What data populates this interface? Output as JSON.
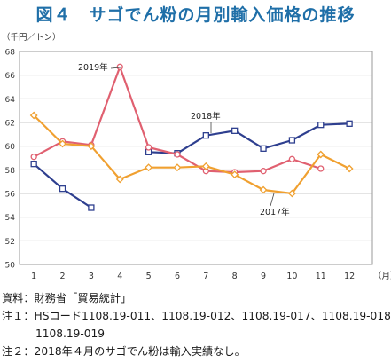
{
  "title": "図４　サゴでん粉の月別輸入価格の推移",
  "notes": {
    "source": "資料：財務省「貿易統計」",
    "note1_line1": "注１：HSコード1108.19-011、1108.19-012、1108.19-017、1108.19-018、",
    "note1_line2": "1108.19-019",
    "note2": "注２：2018年４月のサゴでん粉は輸入実績なし。"
  },
  "chart_data": {
    "type": "line",
    "ylabel": "（千円／トン）",
    "xlabel": "（月）",
    "ylim": [
      50,
      68
    ],
    "yticks": [
      50,
      52,
      54,
      56,
      58,
      60,
      62,
      64,
      66,
      68
    ],
    "x": [
      1,
      2,
      3,
      4,
      5,
      6,
      7,
      8,
      9,
      10,
      11,
      12
    ],
    "grid": true,
    "series": [
      {
        "name": "2018年",
        "color": "#2e3f8f",
        "marker": "square",
        "values": [
          58.5,
          56.4,
          54.8,
          null,
          59.5,
          59.4,
          60.9,
          61.3,
          59.8,
          60.5,
          61.8,
          61.9
        ]
      },
      {
        "name": "2019年",
        "color": "#e06070",
        "marker": "circle",
        "values": [
          59.1,
          60.4,
          60.1,
          66.7,
          59.9,
          59.3,
          57.9,
          57.8,
          57.9,
          58.9,
          58.1,
          null
        ]
      },
      {
        "name": "2017年",
        "color": "#f0a030",
        "marker": "diamond",
        "values": [
          62.6,
          60.2,
          60.0,
          57.2,
          58.2,
          58.2,
          58.3,
          57.6,
          56.3,
          56.0,
          59.3,
          58.1
        ]
      }
    ],
    "annotations": [
      "2019年",
      "2018年",
      "2017年"
    ]
  }
}
